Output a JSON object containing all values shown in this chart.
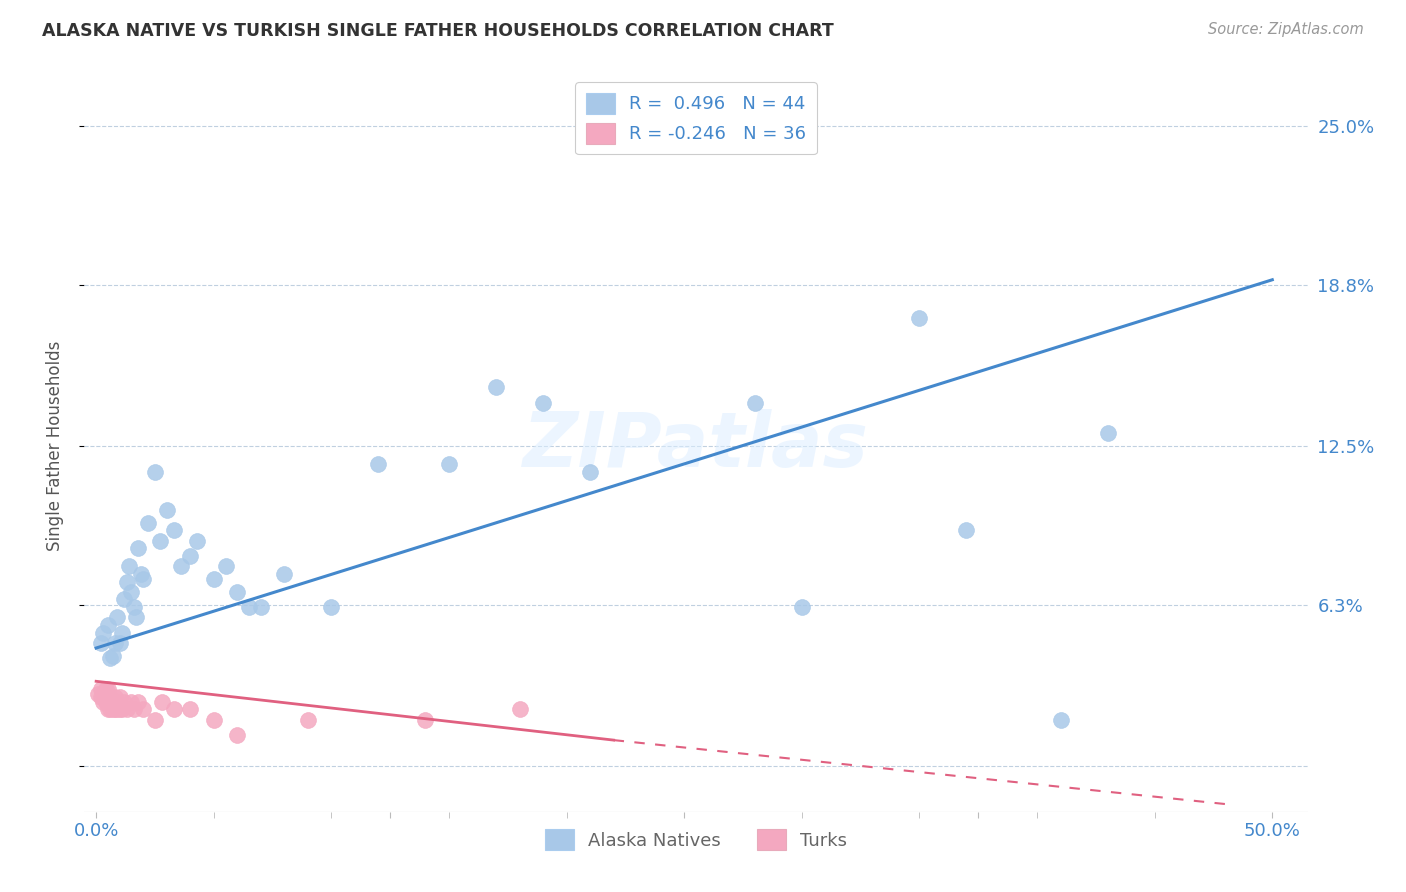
{
  "title": "ALASKA NATIVE VS TURKISH SINGLE FATHER HOUSEHOLDS CORRELATION CHART",
  "source": "Source: ZipAtlas.com",
  "ylabel": "Single Father Households",
  "watermark": "ZIPatlas",
  "alaska_R": 0.496,
  "alaska_N": 44,
  "turk_R": -0.246,
  "turk_N": 36,
  "alaska_color": "#a8c8e8",
  "alaska_line_color": "#4488cc",
  "turk_color": "#f4a8c0",
  "turk_line_color": "#e06080",
  "legend_color": "#4488cc",
  "ytick_vals": [
    0.0,
    0.063,
    0.125,
    0.188,
    0.25
  ],
  "ytick_labels": [
    "",
    "6.3%",
    "12.5%",
    "18.8%",
    "25.0%"
  ],
  "xtick_vals": [
    0.0,
    0.125,
    0.25,
    0.375,
    0.5
  ],
  "xtick_labels": [
    "0.0%",
    "",
    "",
    "",
    "50.0%"
  ],
  "alaska_line_x0": 0.0,
  "alaska_line_y0": 0.046,
  "alaska_line_x1": 0.5,
  "alaska_line_y1": 0.19,
  "turk_line_x0": 0.0,
  "turk_line_y0": 0.033,
  "turk_line_x1": 0.22,
  "turk_line_y1": 0.01,
  "turk_line_dash_x1": 0.48,
  "turk_line_dash_y1": -0.015,
  "alaska_x": [
    0.002,
    0.003,
    0.005,
    0.006,
    0.007,
    0.008,
    0.009,
    0.01,
    0.011,
    0.012,
    0.013,
    0.014,
    0.015,
    0.016,
    0.017,
    0.018,
    0.019,
    0.02,
    0.022,
    0.025,
    0.027,
    0.03,
    0.033,
    0.036,
    0.04,
    0.043,
    0.05,
    0.055,
    0.06,
    0.065,
    0.07,
    0.08,
    0.1,
    0.12,
    0.15,
    0.17,
    0.19,
    0.21,
    0.28,
    0.3,
    0.35,
    0.37,
    0.41,
    0.43
  ],
  "alaska_y": [
    0.048,
    0.052,
    0.055,
    0.042,
    0.043,
    0.048,
    0.058,
    0.048,
    0.052,
    0.065,
    0.072,
    0.078,
    0.068,
    0.062,
    0.058,
    0.085,
    0.075,
    0.073,
    0.095,
    0.115,
    0.088,
    0.1,
    0.092,
    0.078,
    0.082,
    0.088,
    0.073,
    0.078,
    0.068,
    0.062,
    0.062,
    0.075,
    0.062,
    0.118,
    0.118,
    0.148,
    0.142,
    0.115,
    0.142,
    0.062,
    0.175,
    0.092,
    0.018,
    0.13
  ],
  "turk_x": [
    0.001,
    0.002,
    0.002,
    0.003,
    0.003,
    0.004,
    0.004,
    0.005,
    0.005,
    0.005,
    0.006,
    0.006,
    0.007,
    0.007,
    0.008,
    0.008,
    0.009,
    0.009,
    0.01,
    0.01,
    0.011,
    0.012,
    0.013,
    0.015,
    0.016,
    0.018,
    0.02,
    0.025,
    0.028,
    0.033,
    0.04,
    0.05,
    0.06,
    0.09,
    0.14,
    0.18
  ],
  "turk_y": [
    0.028,
    0.027,
    0.03,
    0.025,
    0.028,
    0.025,
    0.03,
    0.022,
    0.025,
    0.03,
    0.022,
    0.027,
    0.022,
    0.025,
    0.022,
    0.027,
    0.022,
    0.025,
    0.022,
    0.027,
    0.022,
    0.025,
    0.022,
    0.025,
    0.022,
    0.025,
    0.022,
    0.018,
    0.025,
    0.022,
    0.022,
    0.018,
    0.012,
    0.018,
    0.018,
    0.022
  ],
  "background_color": "#ffffff",
  "grid_color": "#c0d0e0",
  "xlim": [
    -0.005,
    0.515
  ],
  "ylim": [
    -0.018,
    0.268
  ]
}
